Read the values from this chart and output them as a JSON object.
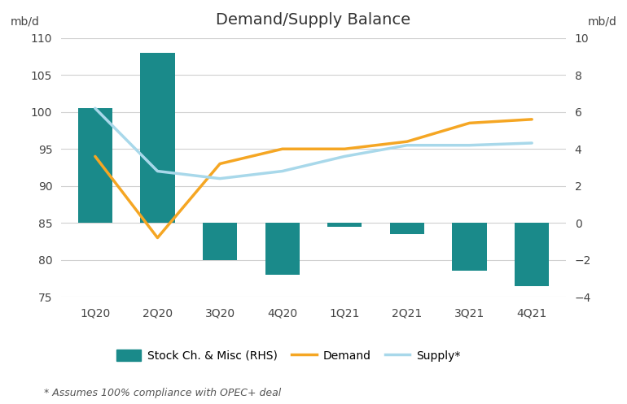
{
  "title": "Demand/Supply Balance",
  "categories": [
    "1Q20",
    "2Q20",
    "3Q20",
    "4Q20",
    "1Q21",
    "2Q21",
    "3Q21",
    "4Q21"
  ],
  "bar_tops_lhs": [
    100.5,
    108.0,
    85.0,
    85.0,
    85.0,
    85.0,
    85.0,
    85.0
  ],
  "bar_bottoms_lhs": [
    85.0,
    85.0,
    80.0,
    78.0,
    84.5,
    83.5,
    78.5,
    76.5
  ],
  "demand_lhs": [
    94.0,
    83.0,
    93.0,
    95.0,
    95.0,
    96.0,
    98.5,
    99.0
  ],
  "supply_lhs": [
    100.5,
    92.0,
    91.0,
    92.0,
    94.0,
    95.5,
    95.5,
    95.8
  ],
  "bar_color": "#1a8a8a",
  "demand_color": "#f5a623",
  "supply_color": "#a8d8ea",
  "left_ylim": [
    75,
    110
  ],
  "right_ylim": [
    -4,
    10
  ],
  "left_yticks": [
    75,
    80,
    85,
    90,
    95,
    100,
    105,
    110
  ],
  "right_yticks": [
    -4,
    -2,
    0,
    2,
    4,
    6,
    8,
    10
  ],
  "left_ylabel": "mb/d",
  "right_ylabel": "mb/d",
  "legend_labels": [
    "Stock Ch. & Misc (RHS)",
    "Demand",
    "Supply*"
  ],
  "footnote": "* Assumes 100% compliance with OPEC+ deal",
  "background_color": "#ffffff",
  "fig_width": 7.7,
  "fig_height": 4.97
}
